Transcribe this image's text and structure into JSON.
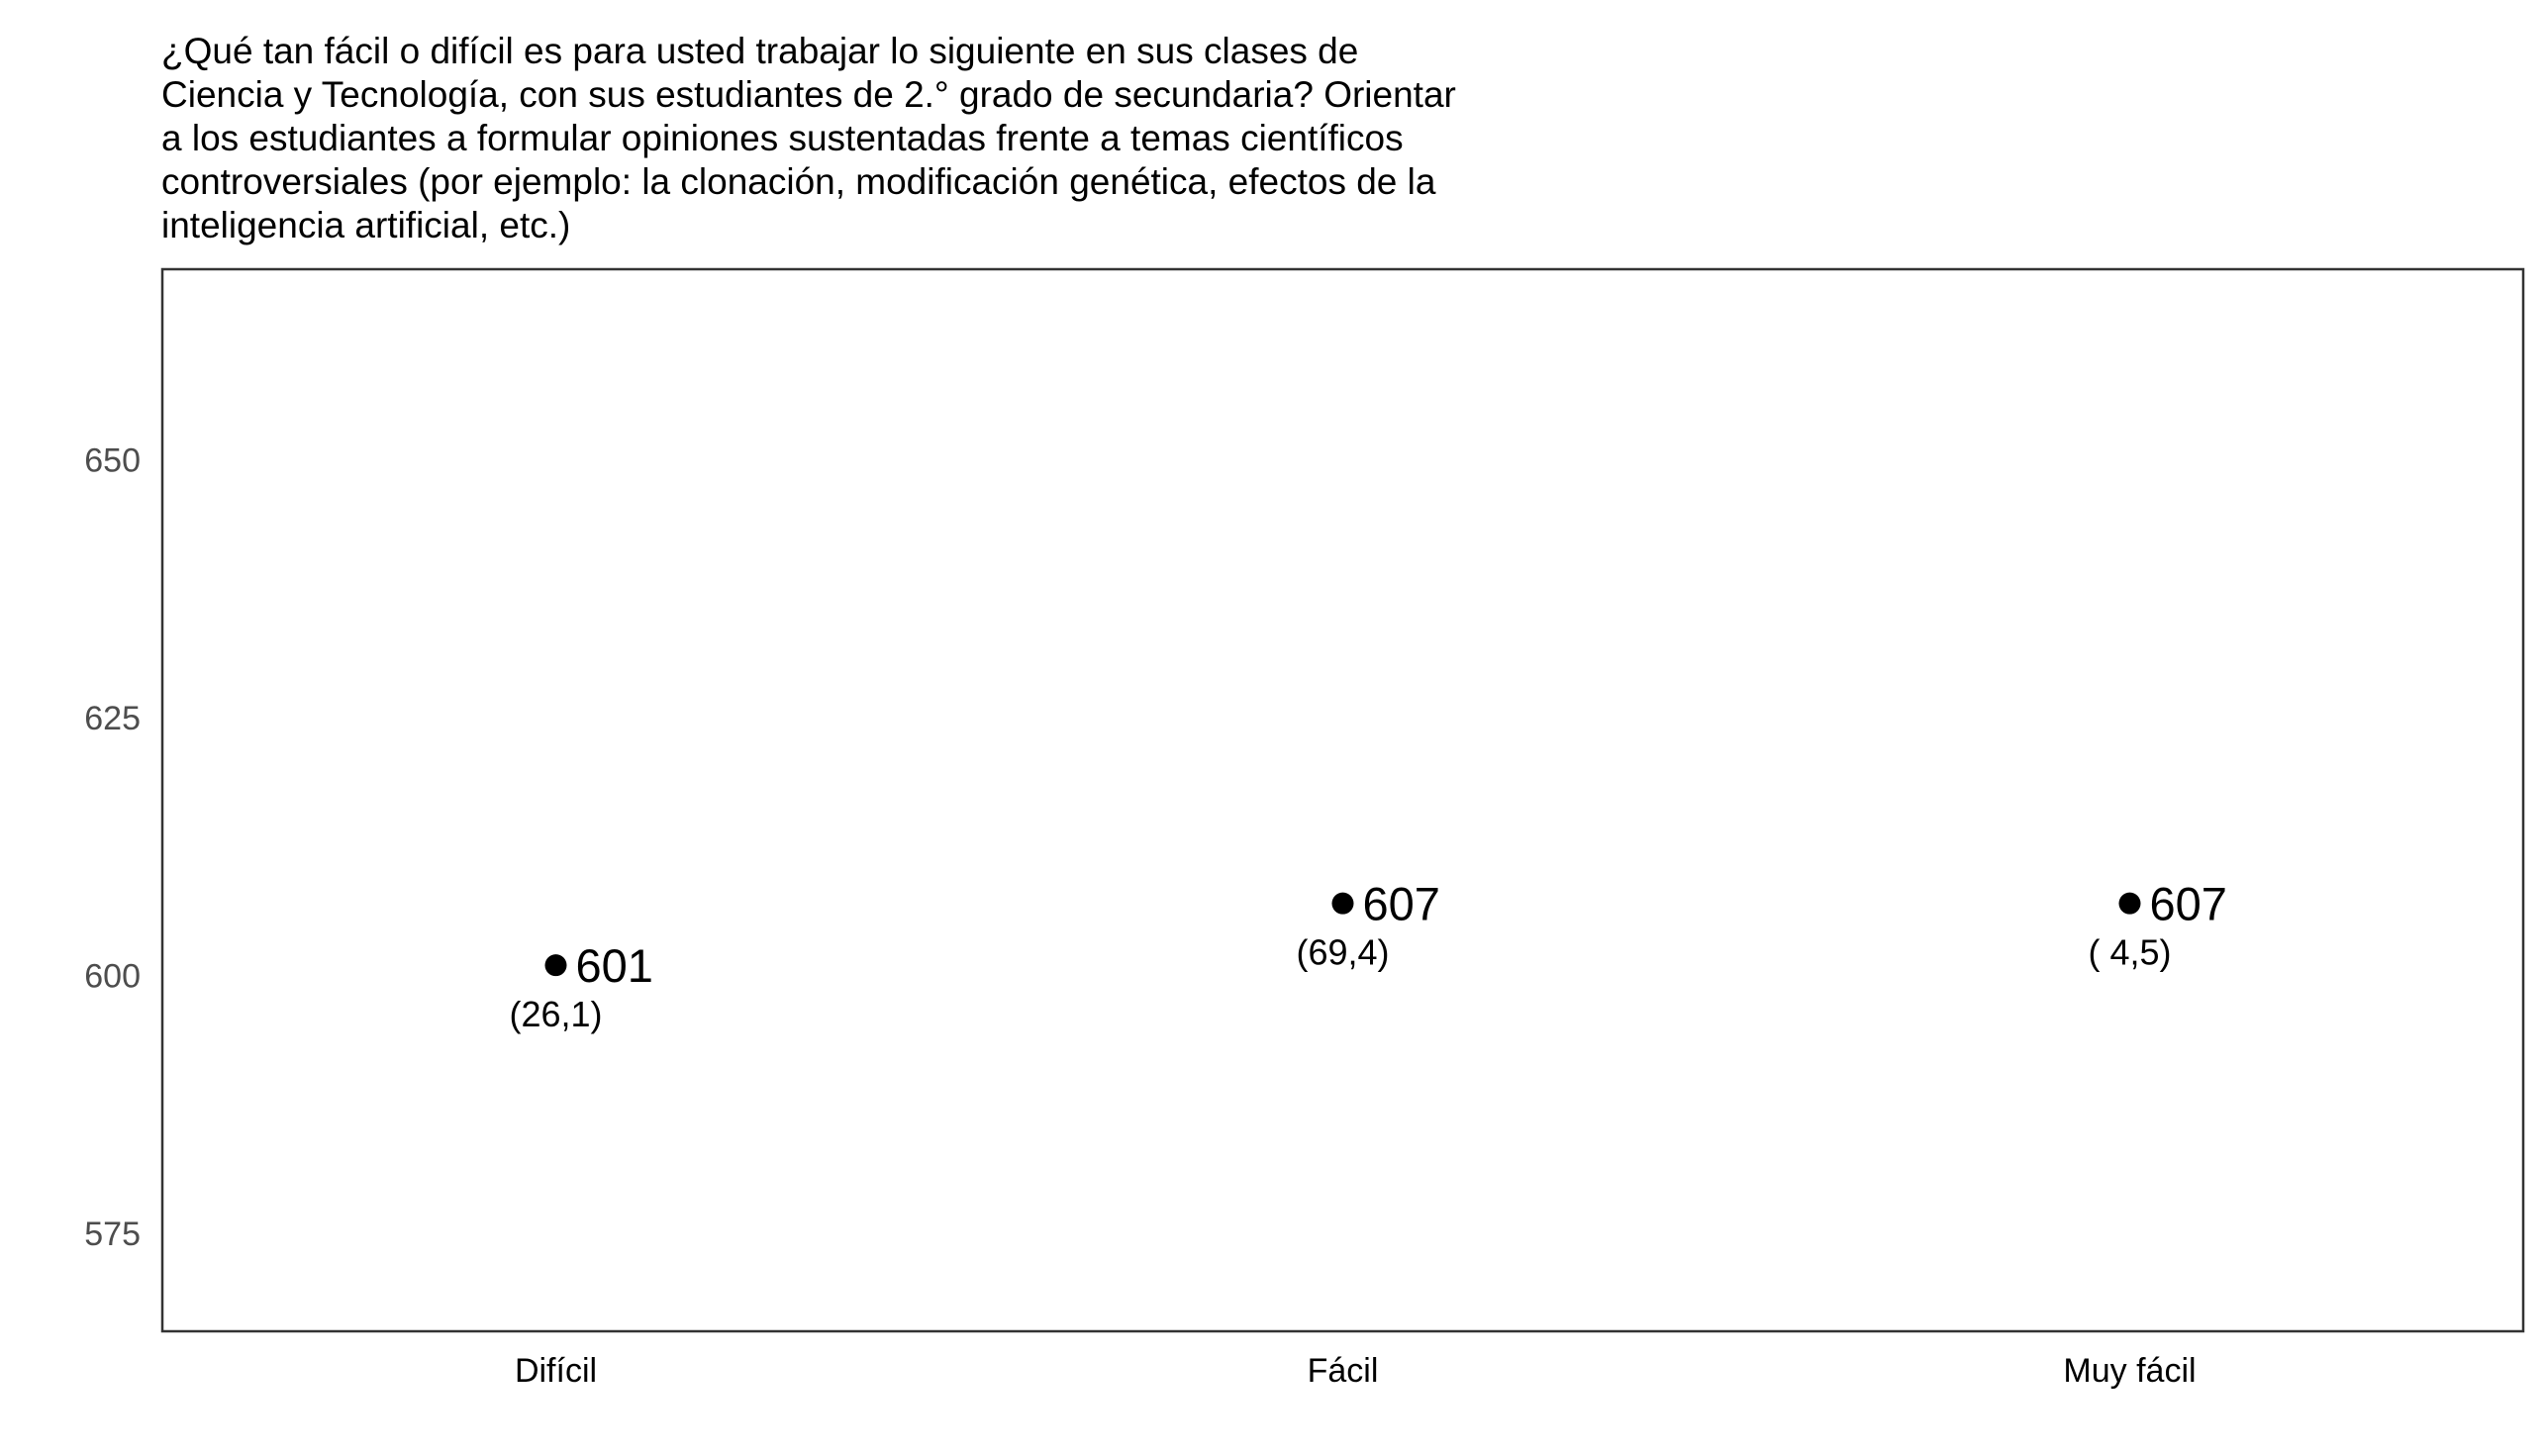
{
  "chart_data": {
    "type": "scatter",
    "title_lines": [
      "¿Qué tan fácil o difícil es para usted trabajar lo siguiente en sus clases de",
      "Ciencia y Tecnología, con sus estudiantes de 2.° grado de secundaria? Orientar",
      "a los estudiantes a formular opiniones sustentadas frente a temas científicos",
      "controversiales (por ejemplo: la clonación, modificación genética, efectos de la",
      "inteligencia artificial, etc.)"
    ],
    "xlabel": "",
    "ylabel": "",
    "categories": [
      "Difícil",
      "Fácil",
      "Muy fácil"
    ],
    "values": [
      601,
      607,
      607
    ],
    "value_labels": [
      "601",
      "607",
      "607"
    ],
    "percent_labels": [
      "(26,1)",
      "(69,4)",
      "( 4,5)"
    ],
    "ylim": [
      565.5,
      668.5
    ],
    "yticks": [
      575,
      600,
      625,
      650
    ],
    "ytick_labels": [
      "575",
      "600",
      "625",
      "650"
    ],
    "grid": false,
    "legend": "none",
    "point_color": "#000000",
    "frame_color": "#333333"
  }
}
